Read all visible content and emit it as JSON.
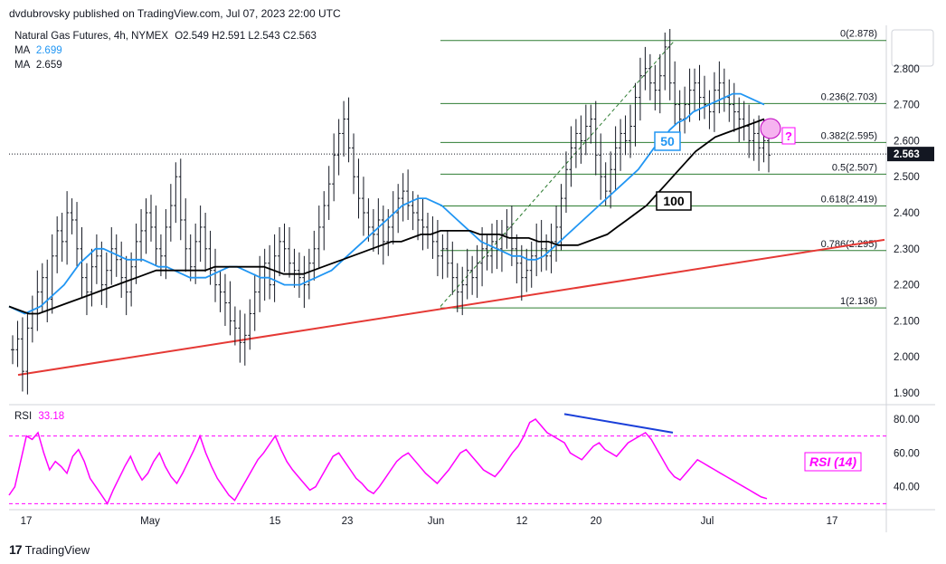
{
  "header": {
    "published": "dvdubrovsky published on TradingView.com, Jul 07, 2023 22:00 UTC"
  },
  "legend": {
    "instrument": "Natural Gas Futures, 4h, NYMEX",
    "ohlc": "O2.549  H2.591  L2.543  C2.563",
    "ma1_label": "MA",
    "ma1_value": "2.699",
    "ma2_label": "MA",
    "ma2_value": "2.659",
    "rsi_label": "RSI",
    "rsi_value": "33.18"
  },
  "footer": {
    "brand": "TradingView",
    "logo": "17"
  },
  "colors": {
    "candle": "#131722",
    "ma50": "#2196f3",
    "ma100": "#000000",
    "fib": "#2e7d32",
    "trendline": "#e53935",
    "rsi": "#ff00ff",
    "divergence": "#1a3fd9"
  },
  "chart_data": {
    "type": "line",
    "price_axis": {
      "ticks": [
        "2.800",
        "2.700",
        "2.600",
        "2.500",
        "2.400",
        "2.300",
        "2.200",
        "2.100",
        "2.000",
        "1.900"
      ],
      "current_price": "2.563",
      "ylim": [
        1.87,
        2.92
      ]
    },
    "time_axis": {
      "ticks": [
        "17",
        "May",
        "15",
        "23",
        "Jun",
        "12",
        "20",
        "Jul",
        "17"
      ]
    },
    "fibonacci": [
      {
        "label": "0(2.878)",
        "value": 2.878
      },
      {
        "label": "0.236(2.703)",
        "value": 2.703
      },
      {
        "label": "0.382(2.595)",
        "value": 2.595
      },
      {
        "label": "0.5(2.507)",
        "value": 2.507
      },
      {
        "label": "0.618(2.419)",
        "value": 2.419
      },
      {
        "label": "0.786(2.295)",
        "value": 2.295
      },
      {
        "label": "1(2.136)",
        "value": 2.136
      }
    ],
    "annotations": {
      "ma50_label": "50",
      "ma100_label": "100",
      "question": "?",
      "rsi_box": "RSI (14)"
    },
    "close_series": [
      2.02,
      2.05,
      1.96,
      2.08,
      2.12,
      2.18,
      2.22,
      2.16,
      2.28,
      2.35,
      2.32,
      2.4,
      2.38,
      2.3,
      2.22,
      2.18,
      2.25,
      2.28,
      2.2,
      2.24,
      2.3,
      2.27,
      2.22,
      2.18,
      2.25,
      2.32,
      2.35,
      2.4,
      2.36,
      2.3,
      2.28,
      2.36,
      2.42,
      2.5,
      2.38,
      2.3,
      2.25,
      2.32,
      2.36,
      2.3,
      2.24,
      2.2,
      2.18,
      2.15,
      2.1,
      2.08,
      2.04,
      2.06,
      2.12,
      2.18,
      2.22,
      2.26,
      2.2,
      2.28,
      2.32,
      2.3,
      2.26,
      2.24,
      2.22,
      2.2,
      2.26,
      2.3,
      2.36,
      2.42,
      2.48,
      2.56,
      2.62,
      2.66,
      2.58,
      2.5,
      2.44,
      2.4,
      2.36,
      2.34,
      2.38,
      2.32,
      2.36,
      2.4,
      2.44,
      2.46,
      2.42,
      2.4,
      2.38,
      2.36,
      2.34,
      2.32,
      2.28,
      2.3,
      2.26,
      2.22,
      2.18,
      2.2,
      2.24,
      2.22,
      2.26,
      2.3,
      2.28,
      2.32,
      2.3,
      2.34,
      2.36,
      2.3,
      2.26,
      2.22,
      2.24,
      2.28,
      2.32,
      2.3,
      2.28,
      2.32,
      2.36,
      2.44,
      2.52,
      2.58,
      2.62,
      2.6,
      2.64,
      2.66,
      2.56,
      2.5,
      2.46,
      2.52,
      2.58,
      2.62,
      2.6,
      2.64,
      2.72,
      2.78,
      2.8,
      2.76,
      2.74,
      2.78,
      2.86,
      2.76,
      2.7,
      2.66,
      2.7,
      2.74,
      2.76,
      2.72,
      2.7,
      2.68,
      2.74,
      2.76,
      2.72,
      2.7,
      2.68,
      2.66,
      2.64,
      2.6,
      2.62,
      2.58,
      2.6,
      2.56
    ],
    "ma50_series": [
      2.14,
      2.13,
      2.12,
      2.13,
      2.14,
      2.16,
      2.18,
      2.2,
      2.23,
      2.26,
      2.28,
      2.3,
      2.3,
      2.29,
      2.28,
      2.27,
      2.27,
      2.27,
      2.26,
      2.25,
      2.25,
      2.24,
      2.23,
      2.22,
      2.22,
      2.22,
      2.23,
      2.24,
      2.25,
      2.25,
      2.24,
      2.23,
      2.22,
      2.22,
      2.21,
      2.2,
      2.2,
      2.2,
      2.21,
      2.22,
      2.23,
      2.24,
      2.26,
      2.28,
      2.3,
      2.32,
      2.34,
      2.36,
      2.38,
      2.4,
      2.42,
      2.43,
      2.44,
      2.44,
      2.43,
      2.42,
      2.4,
      2.38,
      2.36,
      2.34,
      2.32,
      2.31,
      2.3,
      2.29,
      2.28,
      2.28,
      2.27,
      2.27,
      2.28,
      2.3,
      2.32,
      2.34,
      2.36,
      2.38,
      2.4,
      2.42,
      2.44,
      2.46,
      2.48,
      2.5,
      2.52,
      2.55,
      2.58,
      2.6,
      2.63,
      2.65,
      2.66,
      2.68,
      2.69,
      2.7,
      2.71,
      2.72,
      2.73,
      2.73,
      2.72,
      2.71,
      2.7
    ],
    "ma100_series": [
      2.14,
      2.13,
      2.12,
      2.12,
      2.13,
      2.14,
      2.15,
      2.16,
      2.17,
      2.18,
      2.19,
      2.2,
      2.21,
      2.22,
      2.23,
      2.24,
      2.24,
      2.24,
      2.24,
      2.24,
      2.24,
      2.25,
      2.25,
      2.25,
      2.25,
      2.25,
      2.25,
      2.24,
      2.23,
      2.23,
      2.23,
      2.24,
      2.25,
      2.26,
      2.27,
      2.28,
      2.29,
      2.3,
      2.31,
      2.32,
      2.32,
      2.33,
      2.34,
      2.34,
      2.35,
      2.35,
      2.35,
      2.35,
      2.34,
      2.34,
      2.34,
      2.33,
      2.33,
      2.33,
      2.32,
      2.32,
      2.31,
      2.31,
      2.31,
      2.32,
      2.33,
      2.34,
      2.36,
      2.38,
      2.4,
      2.42,
      2.45,
      2.48,
      2.51,
      2.54,
      2.57,
      2.59,
      2.61,
      2.62,
      2.63,
      2.64,
      2.65,
      2.66
    ],
    "rsi_series": [
      35,
      40,
      55,
      70,
      68,
      72,
      60,
      50,
      55,
      52,
      48,
      58,
      62,
      55,
      45,
      40,
      35,
      30,
      38,
      45,
      52,
      58,
      50,
      44,
      48,
      55,
      60,
      52,
      46,
      42,
      48,
      55,
      62,
      70,
      60,
      52,
      45,
      40,
      35,
      32,
      38,
      44,
      50,
      56,
      60,
      65,
      70,
      62,
      55,
      50,
      46,
      42,
      38,
      40,
      46,
      52,
      58,
      60,
      55,
      50,
      45,
      42,
      38,
      36,
      40,
      45,
      50,
      55,
      58,
      60,
      56,
      52,
      48,
      45,
      42,
      46,
      50,
      55,
      60,
      62,
      58,
      54,
      50,
      48,
      46,
      50,
      55,
      60,
      64,
      70,
      78,
      80,
      76,
      72,
      70,
      68,
      66,
      60,
      58,
      56,
      60,
      64,
      66,
      62,
      60,
      58,
      62,
      66,
      68,
      70,
      72,
      68,
      62,
      56,
      50,
      46,
      44,
      48,
      52,
      56,
      54,
      52,
      50,
      48,
      46,
      44,
      42,
      40,
      38,
      36,
      34,
      33
    ]
  }
}
